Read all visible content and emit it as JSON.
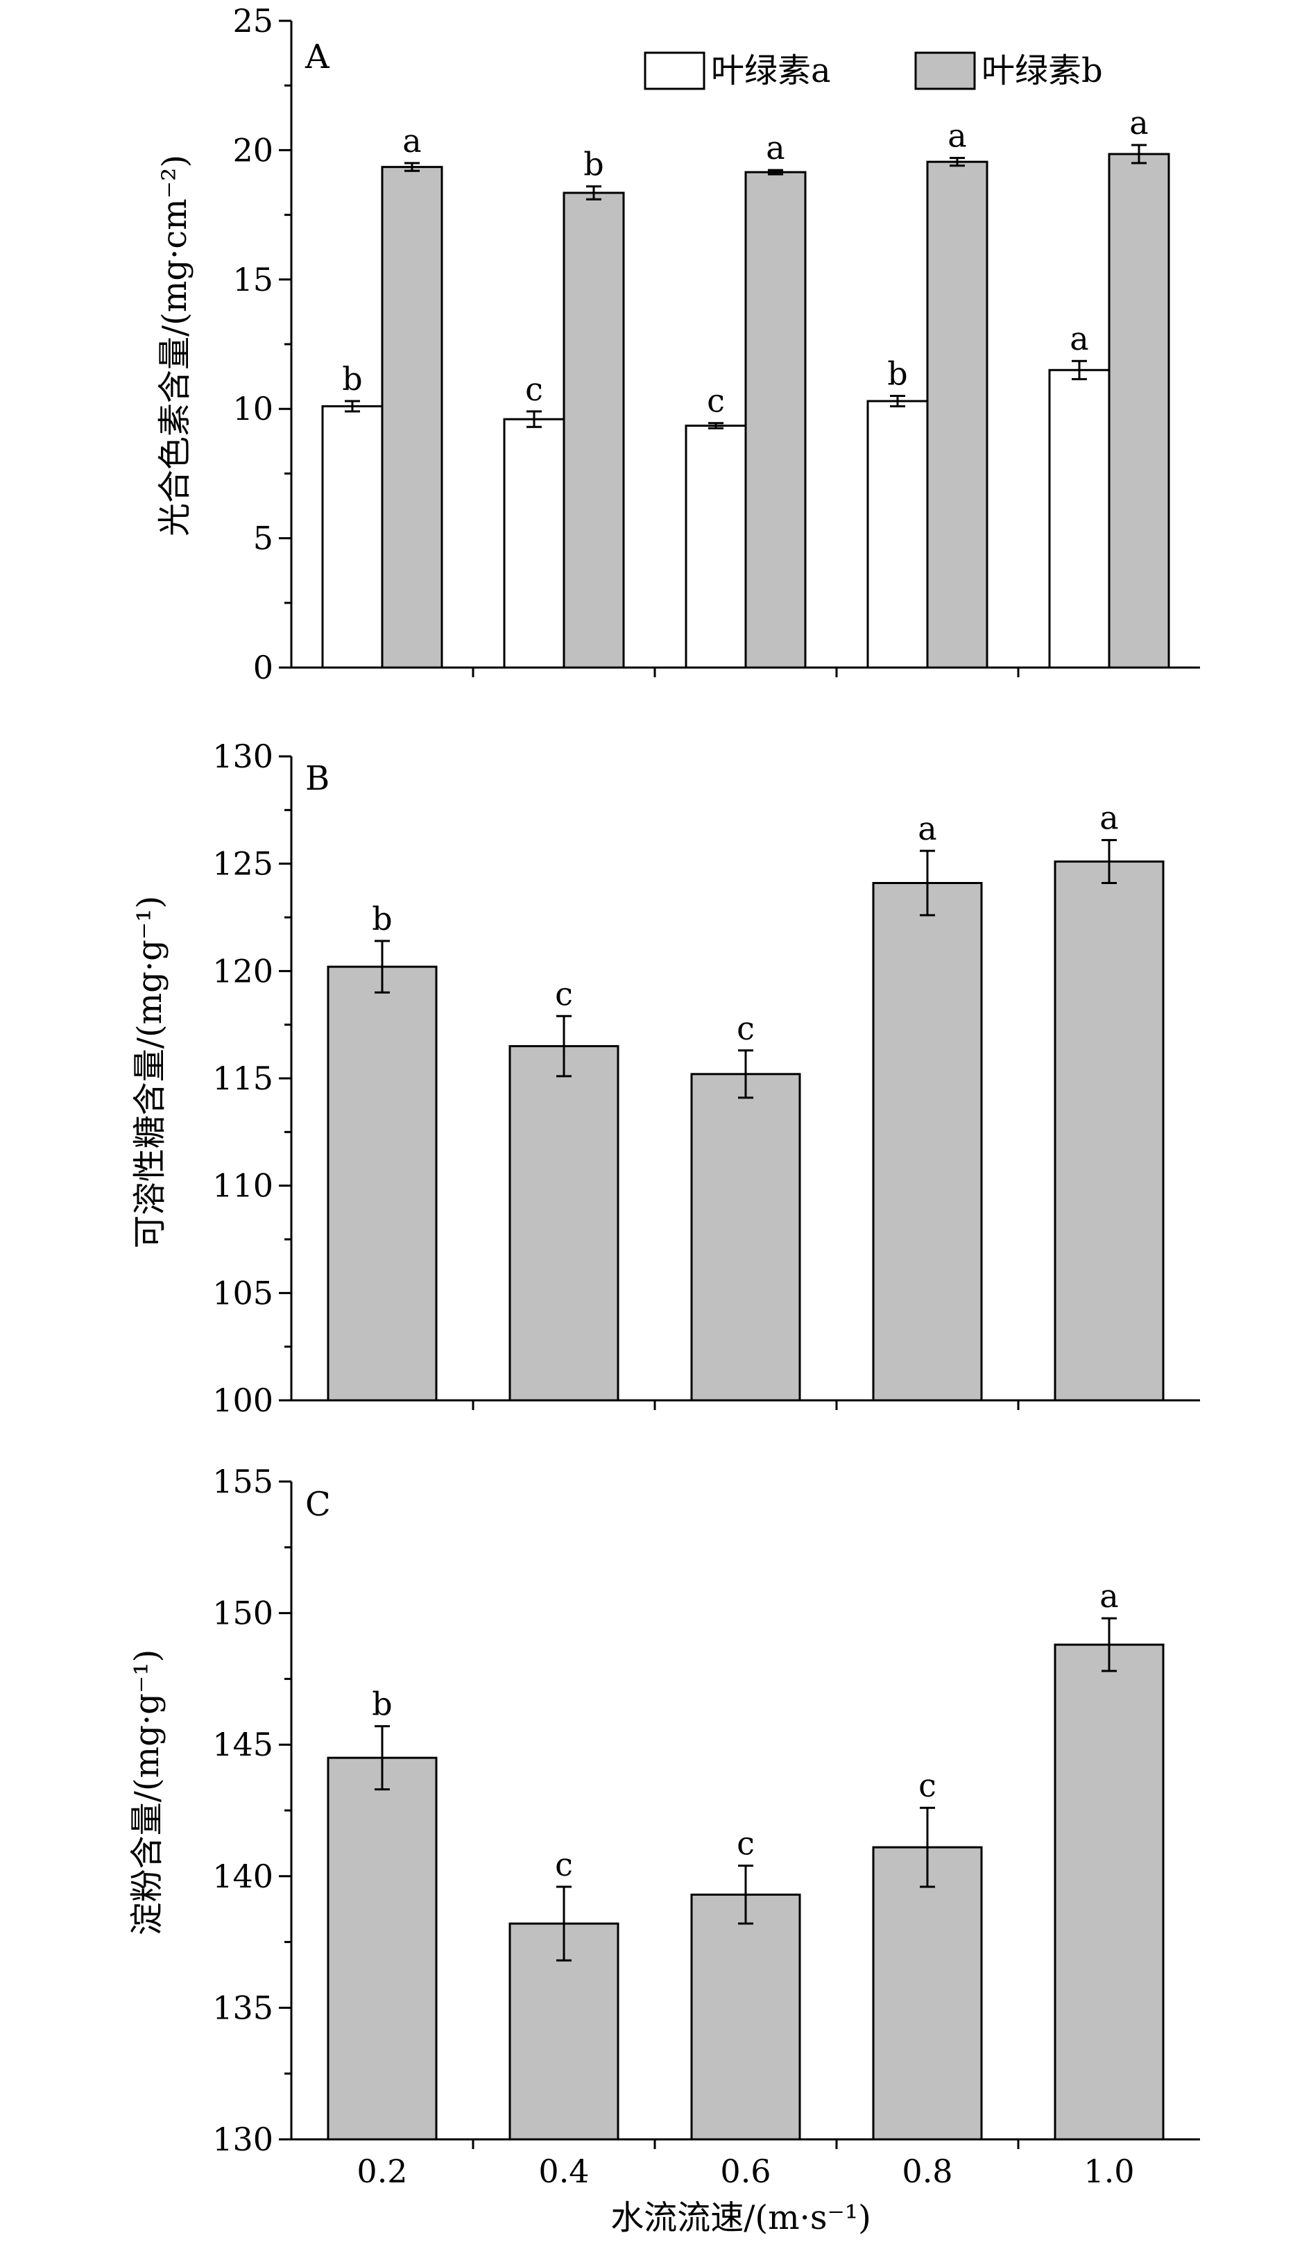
{
  "figure": {
    "xlabel": "水流流速/(m·s⁻¹)",
    "x_categories": [
      "0.2",
      "0.4",
      "0.6",
      "0.8",
      "1.0"
    ]
  },
  "chart_data": [
    {
      "type": "bar",
      "panel": "A",
      "ylabel": "光合色素含量/(mg·cm⁻²)",
      "ylim": [
        0,
        25
      ],
      "yticks": [
        "0",
        "5",
        "10",
        "15",
        "20",
        "25"
      ],
      "categories": [
        "0.2",
        "0.4",
        "0.6",
        "0.8",
        "1.0"
      ],
      "series": [
        {
          "name": "叶绿素a",
          "color": "#ffffff",
          "values": [
            10.1,
            9.6,
            9.35,
            10.3,
            11.5
          ],
          "errors": [
            0.2,
            0.3,
            0.1,
            0.2,
            0.35
          ],
          "labels": [
            "b",
            "c",
            "c",
            "b",
            "a"
          ]
        },
        {
          "name": "叶绿素b",
          "color": "#c0c0c0",
          "values": [
            19.35,
            18.35,
            19.15,
            19.55,
            19.85
          ],
          "errors": [
            0.15,
            0.25,
            0.08,
            0.15,
            0.35
          ],
          "labels": [
            "a",
            "b",
            "a",
            "a",
            "a"
          ]
        }
      ],
      "legend": {
        "position": "top-right"
      }
    },
    {
      "type": "bar",
      "panel": "B",
      "ylabel": "可溶性糖含量/(mg·g⁻¹)",
      "ylim": [
        100,
        130
      ],
      "yticks": [
        "100",
        "105",
        "110",
        "115",
        "120",
        "125",
        "130"
      ],
      "categories": [
        "0.2",
        "0.4",
        "0.6",
        "0.8",
        "1.0"
      ],
      "series": [
        {
          "color": "#c0c0c0",
          "values": [
            120.2,
            116.5,
            115.2,
            124.1,
            125.1
          ],
          "errors": [
            1.2,
            1.4,
            1.1,
            1.5,
            1.0
          ],
          "labels": [
            "b",
            "c",
            "c",
            "a",
            "a"
          ]
        }
      ]
    },
    {
      "type": "bar",
      "panel": "C",
      "ylabel": "淀粉含量/(mg·g⁻¹)",
      "ylim": [
        130,
        155
      ],
      "yticks": [
        "130",
        "135",
        "140",
        "145",
        "150",
        "155"
      ],
      "categories": [
        "0.2",
        "0.4",
        "0.6",
        "0.8",
        "1.0"
      ],
      "series": [
        {
          "color": "#c0c0c0",
          "values": [
            144.5,
            138.2,
            139.3,
            141.1,
            148.8
          ],
          "errors": [
            1.2,
            1.4,
            1.1,
            1.5,
            1.0
          ],
          "labels": [
            "b",
            "c",
            "c",
            "c",
            "a"
          ]
        }
      ]
    }
  ]
}
